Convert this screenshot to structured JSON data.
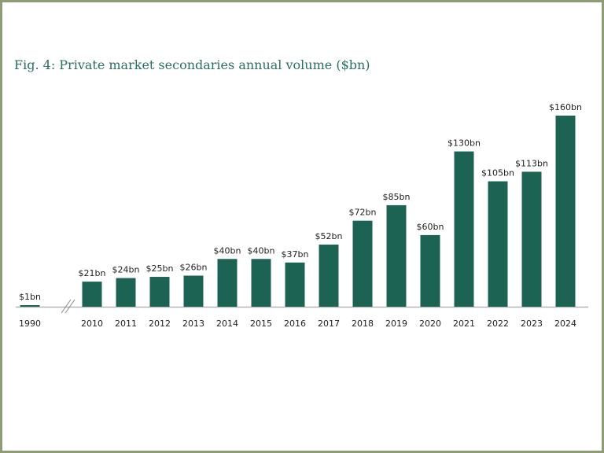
{
  "chart_data": {
    "type": "bar",
    "title": "Fig. 4: Private market secondaries annual volume ($bn)",
    "categories": [
      "1990",
      "2010",
      "2011",
      "2012",
      "2013",
      "2014",
      "2015",
      "2016",
      "2017",
      "2018",
      "2019",
      "2020",
      "2021",
      "2022",
      "2023",
      "2024"
    ],
    "values": [
      1,
      21,
      24,
      25,
      26,
      40,
      40,
      37,
      52,
      72,
      85,
      60,
      130,
      105,
      113,
      160
    ],
    "data_labels": [
      "$1bn",
      "$21bn",
      "$24bn",
      "$25bn",
      "$26bn",
      "$40bn",
      "$40bn",
      "$37bn",
      "$52bn",
      "$72bn",
      "$85bn",
      "$60bn",
      "$130bn",
      "$105bn",
      "$113bn",
      "$160bn"
    ],
    "xlabel": "",
    "ylabel": "",
    "axis_break_after": "1990",
    "grid": false,
    "colors": {
      "bar": "#1d6354",
      "title": "#2b6e60",
      "frame": "#8e9c74",
      "axis": "#b5b5b5"
    }
  }
}
